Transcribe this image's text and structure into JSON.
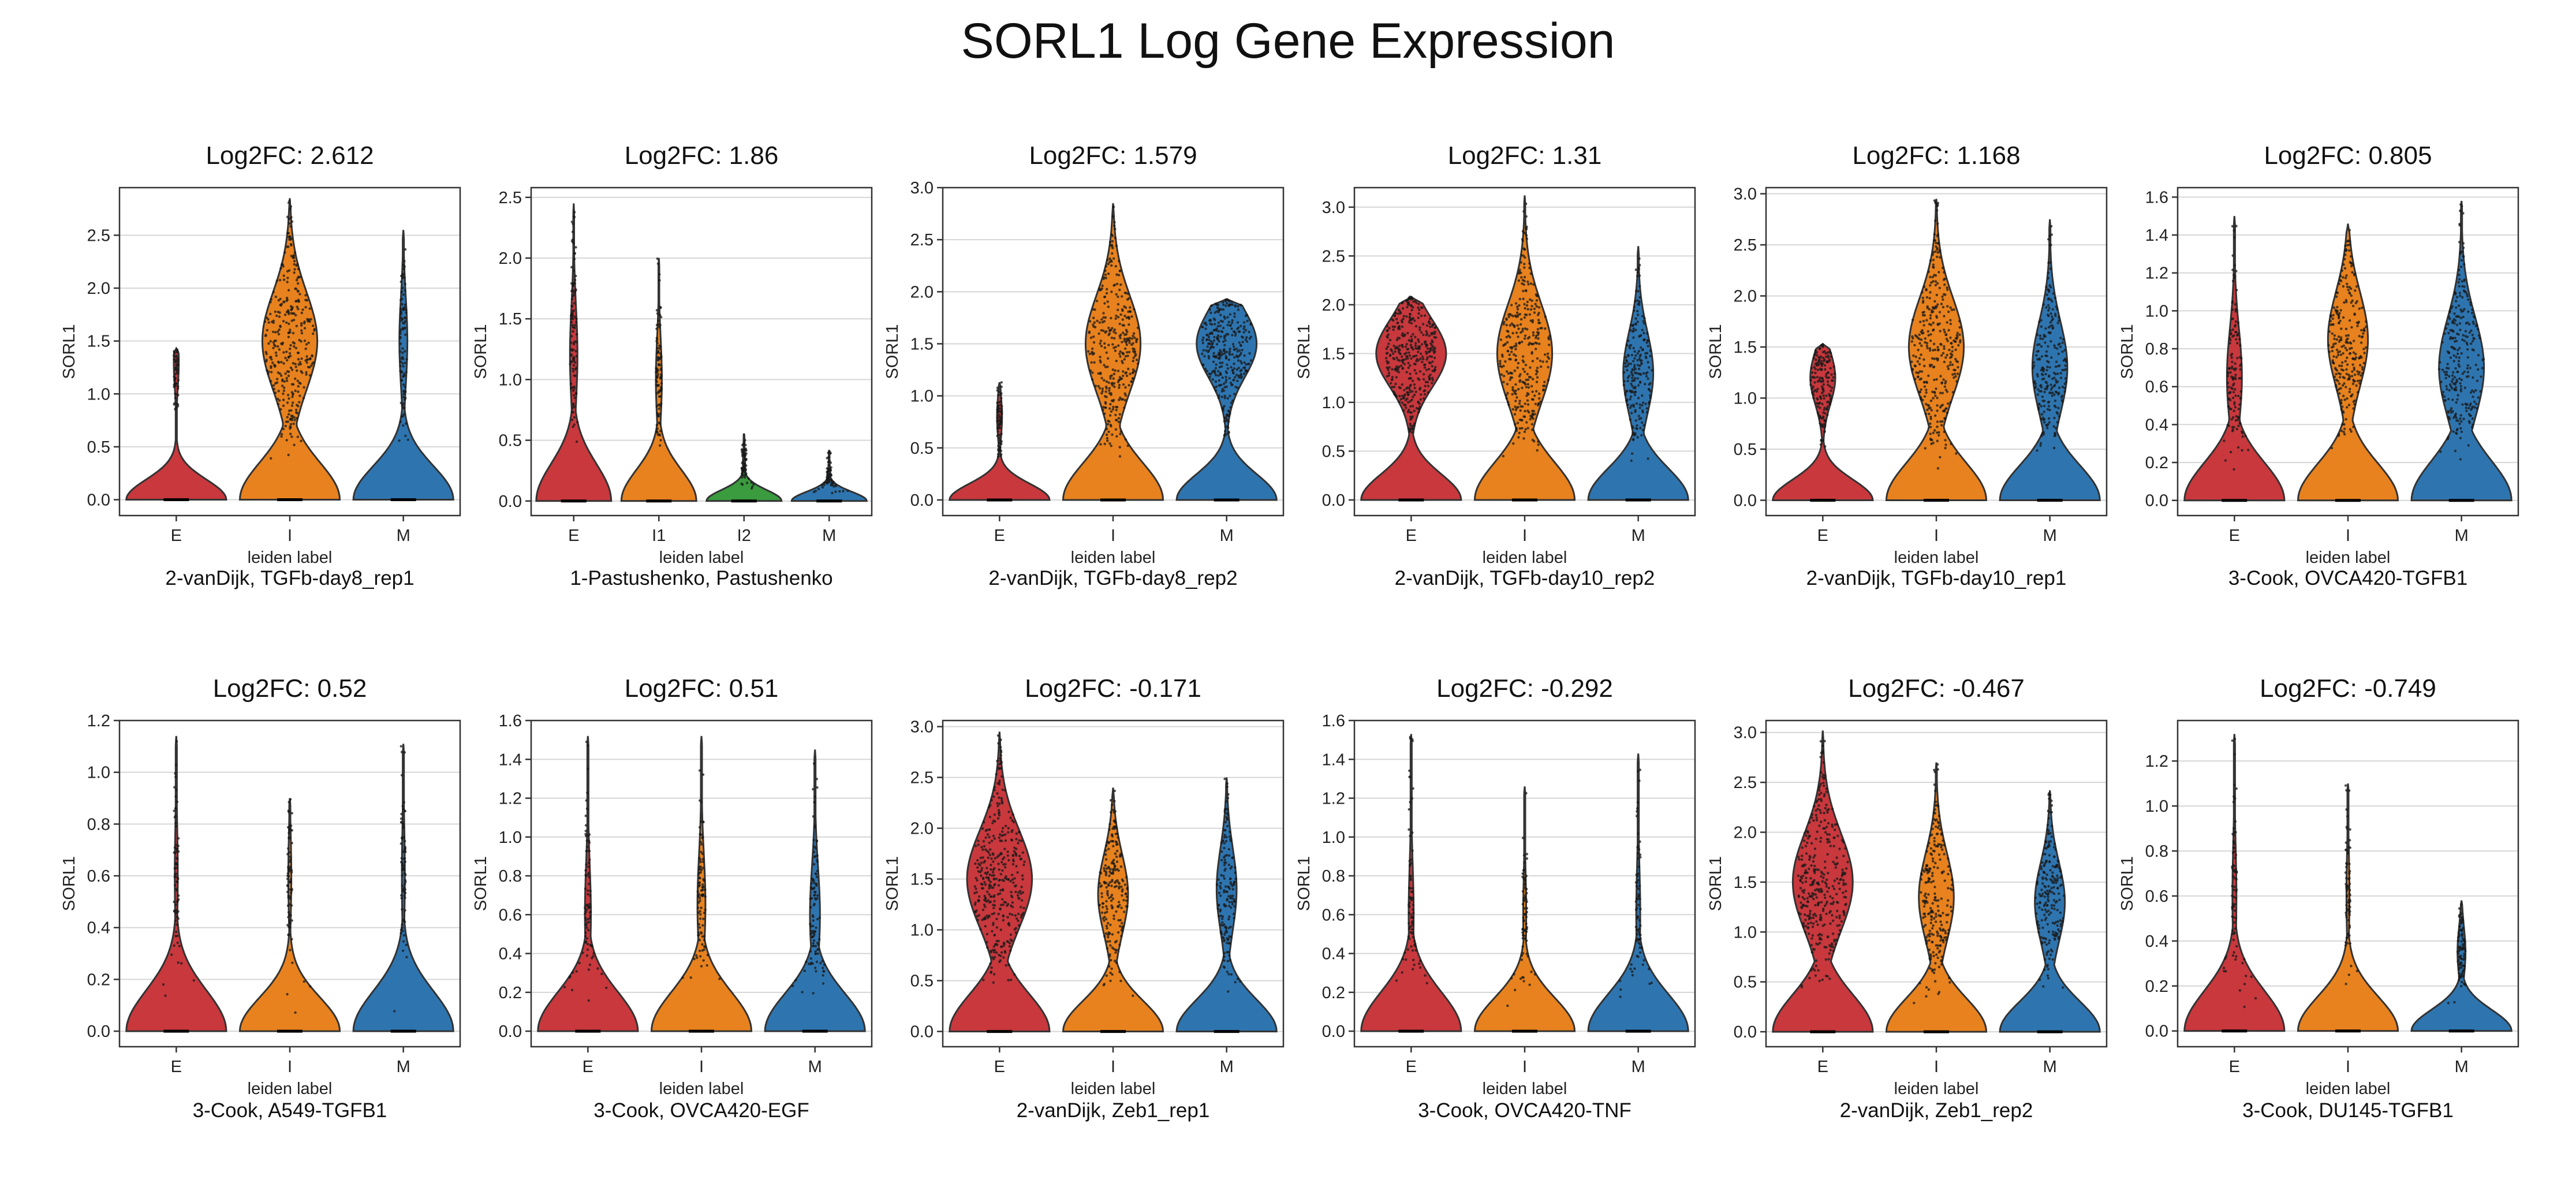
{
  "figure": {
    "title": "SORL1 Log Gene Expression"
  },
  "colors": {
    "E": "#c8383d",
    "I": "#e8821e",
    "I1": "#e8821e",
    "I2": "#3a9b3f",
    "M": "#2e75b0",
    "grid": "#d6d6d6"
  },
  "chart_data": [
    {
      "type": "violin",
      "title": "Log2FC: 2.612",
      "dataset": "2-vanDijk, TGFb-day8_rep1",
      "xlabel": "leiden label",
      "ylabel": "SORL1",
      "categories": [
        "E",
        "I",
        "M"
      ],
      "ylim": [
        -0.15,
        2.95
      ],
      "yticks": [
        0.0,
        0.5,
        1.0,
        1.5,
        2.0,
        2.5
      ],
      "violins": [
        {
          "max": 1.43,
          "low": 0.5,
          "mode": 1.3,
          "mw": 0.05
        },
        {
          "max": 2.85,
          "low": 0.5,
          "mode": 1.5,
          "mw": 0.55
        },
        {
          "max": 2.55,
          "low": 0.55,
          "mode": 1.5,
          "mw": 0.08
        }
      ]
    },
    {
      "type": "violin",
      "title": "Log2FC: 1.86",
      "dataset": "1-Pastushenko, Pastushenko",
      "xlabel": "leiden label",
      "ylabel": "SORL1",
      "categories": [
        "E",
        "I1",
        "I2",
        "M"
      ],
      "ylim": [
        -0.12,
        2.58
      ],
      "yticks": [
        0.0,
        0.5,
        1.0,
        1.5,
        2.0,
        2.5
      ],
      "violins": [
        {
          "max": 2.45,
          "low": 0.6,
          "mode": 1.2,
          "mw": 0.1
        },
        {
          "max": 2.0,
          "low": 0.5,
          "mode": 1.0,
          "mw": 0.08
        },
        {
          "max": 0.55,
          "low": 0.08,
          "mode": 0.3,
          "mw": 0.03
        },
        {
          "max": 0.42,
          "low": 0.06,
          "mode": 0.2,
          "mw": 0.03
        }
      ]
    },
    {
      "type": "violin",
      "title": "Log2FC: 1.579",
      "dataset": "2-vanDijk, TGFb-day8_rep2",
      "xlabel": "leiden label",
      "ylabel": "SORL1",
      "categories": [
        "E",
        "I",
        "M"
      ],
      "ylim": [
        -0.15,
        3.0
      ],
      "yticks": [
        0.0,
        0.5,
        1.0,
        1.5,
        2.0,
        2.5,
        3.0
      ],
      "violins": [
        {
          "max": 1.13,
          "low": 0.4,
          "mode": 0.8,
          "mw": 0.05
        },
        {
          "max": 2.85,
          "low": 0.5,
          "mode": 1.5,
          "mw": 0.55
        },
        {
          "max": 1.93,
          "low": 0.6,
          "mode": 1.5,
          "mw": 0.6
        }
      ]
    },
    {
      "type": "violin",
      "title": "Log2FC: 1.31",
      "dataset": "2-vanDijk, TGFb-day10_rep2",
      "xlabel": "leiden label",
      "ylabel": "SORL1",
      "categories": [
        "E",
        "I",
        "M"
      ],
      "ylim": [
        -0.16,
        3.2
      ],
      "yticks": [
        0.0,
        0.5,
        1.0,
        1.5,
        2.0,
        2.5,
        3.0
      ],
      "violins": [
        {
          "max": 2.08,
          "low": 0.7,
          "mode": 1.5,
          "mw": 0.7
        },
        {
          "max": 3.12,
          "low": 0.5,
          "mode": 1.5,
          "mw": 0.55
        },
        {
          "max": 2.6,
          "low": 0.55,
          "mode": 1.3,
          "mw": 0.3
        }
      ]
    },
    {
      "type": "violin",
      "title": "Log2FC: 1.168",
      "dataset": "2-vanDijk, TGFb-day10_rep1",
      "xlabel": "leiden label",
      "ylabel": "SORL1",
      "categories": [
        "E",
        "I",
        "M"
      ],
      "ylim": [
        -0.15,
        3.06
      ],
      "yticks": [
        0.0,
        0.5,
        1.0,
        1.5,
        2.0,
        2.5,
        3.0
      ],
      "violins": [
        {
          "max": 1.53,
          "low": 0.5,
          "mode": 1.2,
          "mw": 0.25
        },
        {
          "max": 2.95,
          "low": 0.5,
          "mode": 1.5,
          "mw": 0.55
        },
        {
          "max": 2.75,
          "low": 0.55,
          "mode": 1.3,
          "mw": 0.35
        }
      ]
    },
    {
      "type": "violin",
      "title": "Log2FC: 0.805",
      "dataset": "3-Cook, OVCA420-TGFB1",
      "xlabel": "leiden label",
      "ylabel": "SORL1",
      "categories": [
        "E",
        "I",
        "M"
      ],
      "ylim": [
        -0.08,
        1.65
      ],
      "yticks": [
        0.0,
        0.2,
        0.4,
        0.6,
        0.8,
        1.0,
        1.2,
        1.4,
        1.6
      ],
      "violins": [
        {
          "max": 1.5,
          "low": 0.25,
          "mode": 0.65,
          "mw": 0.15
        },
        {
          "max": 1.46,
          "low": 0.35,
          "mode": 0.85,
          "mw": 0.4
        },
        {
          "max": 1.58,
          "low": 0.35,
          "mode": 0.7,
          "mw": 0.45
        }
      ]
    },
    {
      "type": "violin",
      "title": "Log2FC: 0.52",
      "dataset": "3-Cook, A549-TGFB1",
      "xlabel": "leiden label",
      "ylabel": "SORL1",
      "categories": [
        "E",
        "I",
        "M"
      ],
      "ylim": [
        -0.06,
        1.2
      ],
      "yticks": [
        0.0,
        0.2,
        0.4,
        0.6,
        0.8,
        1.0,
        1.2
      ],
      "violins": [
        {
          "max": 1.14,
          "low": 0.06,
          "mode": 0.6,
          "mw": 0.03
        },
        {
          "max": 0.9,
          "low": 0.05,
          "mode": 0.6,
          "mw": 0.03
        },
        {
          "max": 1.11,
          "low": 0.06,
          "mode": 0.6,
          "mw": 0.03
        }
      ]
    },
    {
      "type": "violin",
      "title": "Log2FC: 0.51",
      "dataset": "3-Cook, OVCA420-EGF",
      "xlabel": "leiden label",
      "ylabel": "SORL1",
      "categories": [
        "E",
        "I",
        "M"
      ],
      "ylim": [
        -0.08,
        1.6
      ],
      "yticks": [
        0.0,
        0.2,
        0.4,
        0.6,
        0.8,
        1.0,
        1.2,
        1.4,
        1.6
      ],
      "violins": [
        {
          "max": 1.52,
          "low": 0.2,
          "mode": 0.6,
          "mw": 0.06
        },
        {
          "max": 1.52,
          "low": 0.25,
          "mode": 0.65,
          "mw": 0.08
        },
        {
          "max": 1.45,
          "low": 0.3,
          "mode": 0.6,
          "mw": 0.1
        }
      ]
    },
    {
      "type": "violin",
      "title": "Log2FC: -0.171",
      "dataset": "2-vanDijk, Zeb1_rep1",
      "xlabel": "leiden label",
      "ylabel": "SORL1",
      "categories": [
        "E",
        "I",
        "M"
      ],
      "ylim": [
        -0.15,
        3.06
      ],
      "yticks": [
        0.0,
        0.5,
        1.0,
        1.5,
        2.0,
        2.5,
        3.0
      ],
      "violins": [
        {
          "max": 2.95,
          "low": 0.5,
          "mode": 1.5,
          "mw": 0.65
        },
        {
          "max": 2.4,
          "low": 0.45,
          "mode": 1.35,
          "mw": 0.3
        },
        {
          "max": 2.5,
          "low": 0.45,
          "mode": 1.4,
          "mw": 0.2
        }
      ]
    },
    {
      "type": "violin",
      "title": "Log2FC: -0.292",
      "dataset": "3-Cook, OVCA420-TNF",
      "xlabel": "leiden label",
      "ylabel": "SORL1",
      "categories": [
        "E",
        "I",
        "M"
      ],
      "ylim": [
        -0.08,
        1.6
      ],
      "yticks": [
        0.0,
        0.2,
        0.4,
        0.6,
        0.8,
        1.0,
        1.2,
        1.4,
        1.6
      ],
      "violins": [
        {
          "max": 1.53,
          "low": 0.2,
          "mode": 0.6,
          "mw": 0.05
        },
        {
          "max": 1.26,
          "low": 0.15,
          "mode": 0.6,
          "mw": 0.03
        },
        {
          "max": 1.43,
          "low": 0.2,
          "mode": 0.6,
          "mw": 0.04
        }
      ]
    },
    {
      "type": "violin",
      "title": "Log2FC: -0.467",
      "dataset": "2-vanDijk, Zeb1_rep2",
      "xlabel": "leiden label",
      "ylabel": "SORL1",
      "categories": [
        "E",
        "I",
        "M"
      ],
      "ylim": [
        -0.15,
        3.12
      ],
      "yticks": [
        0.0,
        0.5,
        1.0,
        1.5,
        2.0,
        2.5,
        3.0
      ],
      "violins": [
        {
          "max": 3.02,
          "low": 0.5,
          "mode": 1.5,
          "mw": 0.6
        },
        {
          "max": 2.7,
          "low": 0.45,
          "mode": 1.35,
          "mw": 0.35
        },
        {
          "max": 2.42,
          "low": 0.45,
          "mode": 1.3,
          "mw": 0.3
        }
      ]
    },
    {
      "type": "violin",
      "title": "Log2FC: -0.749",
      "dataset": "3-Cook, DU145-TGFB1",
      "xlabel": "leiden label",
      "ylabel": "SORL1",
      "categories": [
        "E",
        "I",
        "M"
      ],
      "ylim": [
        -0.07,
        1.38
      ],
      "yticks": [
        0.0,
        0.2,
        0.4,
        0.6,
        0.8,
        1.0,
        1.2
      ],
      "violins": [
        {
          "max": 1.32,
          "low": 0.15,
          "mode": 0.6,
          "mw": 0.04
        },
        {
          "max": 1.1,
          "low": 0.1,
          "mode": 0.6,
          "mw": 0.03
        },
        {
          "max": 0.58,
          "low": 0.12,
          "mode": 0.35,
          "mw": 0.08
        }
      ]
    }
  ]
}
